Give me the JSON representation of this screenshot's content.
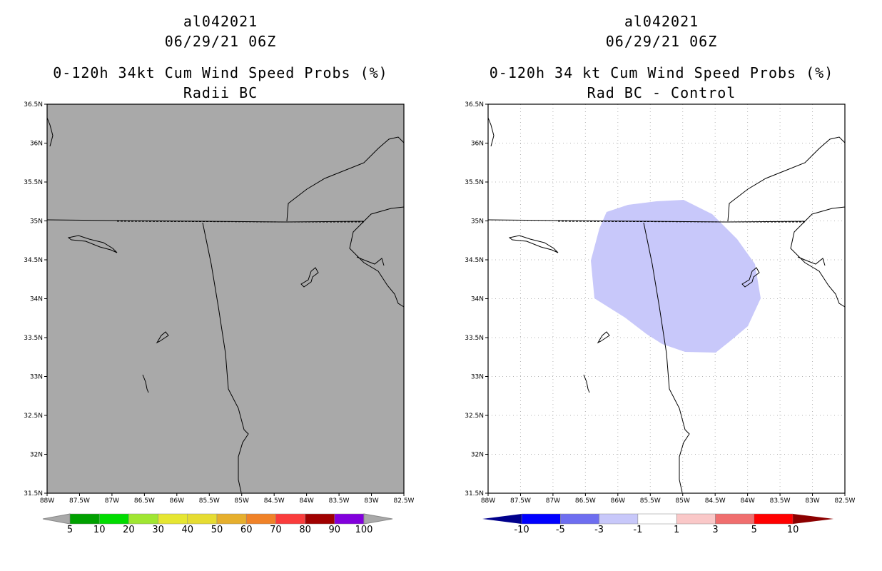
{
  "panels": [
    {
      "storm": "al042021",
      "datetime": "06/29/21 06Z",
      "product": "0-120h 34kt Cum Wind Speed Probs (%)",
      "subtitle": "Radii BC",
      "map_fill": "#a9a9a9",
      "colorbar": {
        "colors": [
          "#a9a9a9",
          "#00a000",
          "#00dc00",
          "#a0e632",
          "#e6e632",
          "#e6dc32",
          "#e6af2d",
          "#f08228",
          "#fa3c3c",
          "#a00000",
          "#8200dc",
          "#a9a9a9"
        ],
        "labels": [
          "5",
          "10",
          "20",
          "30",
          "40",
          "50",
          "60",
          "70",
          "80",
          "90",
          "100"
        ]
      }
    },
    {
      "storm": "al042021",
      "datetime": "06/29/21 06Z",
      "product": "0-120h 34 kt Cum Wind Speed Probs (%)",
      "subtitle": "Rad BC - Control",
      "map_fill": "#ffffff",
      "shaded_color": "#c8c8fa",
      "colorbar": {
        "colors": [
          "#00008c",
          "#0000ff",
          "#6e6ef0",
          "#c8c8fa",
          "#ffffff",
          "#fac8c8",
          "#f06e6e",
          "#ff0000",
          "#8c0000"
        ],
        "labels": [
          "-10",
          "-5",
          "-3",
          "-1",
          "1",
          "3",
          "5",
          "10"
        ]
      }
    }
  ],
  "axes": {
    "lat_ticks": [
      "36.5N",
      "36N",
      "35.5N",
      "35N",
      "34.5N",
      "34N",
      "33.5N",
      "33N",
      "32.5N",
      "32N",
      "31.5N"
    ],
    "lon_ticks": [
      "88W",
      "87.5W",
      "87W",
      "86.5W",
      "86W",
      "85.5W",
      "85W",
      "84.5W",
      "84W",
      "83.5W",
      "83W",
      "82.5W"
    ],
    "lat_range": [
      31.5,
      36.5
    ],
    "lon_range": [
      -88,
      -82.5
    ]
  }
}
